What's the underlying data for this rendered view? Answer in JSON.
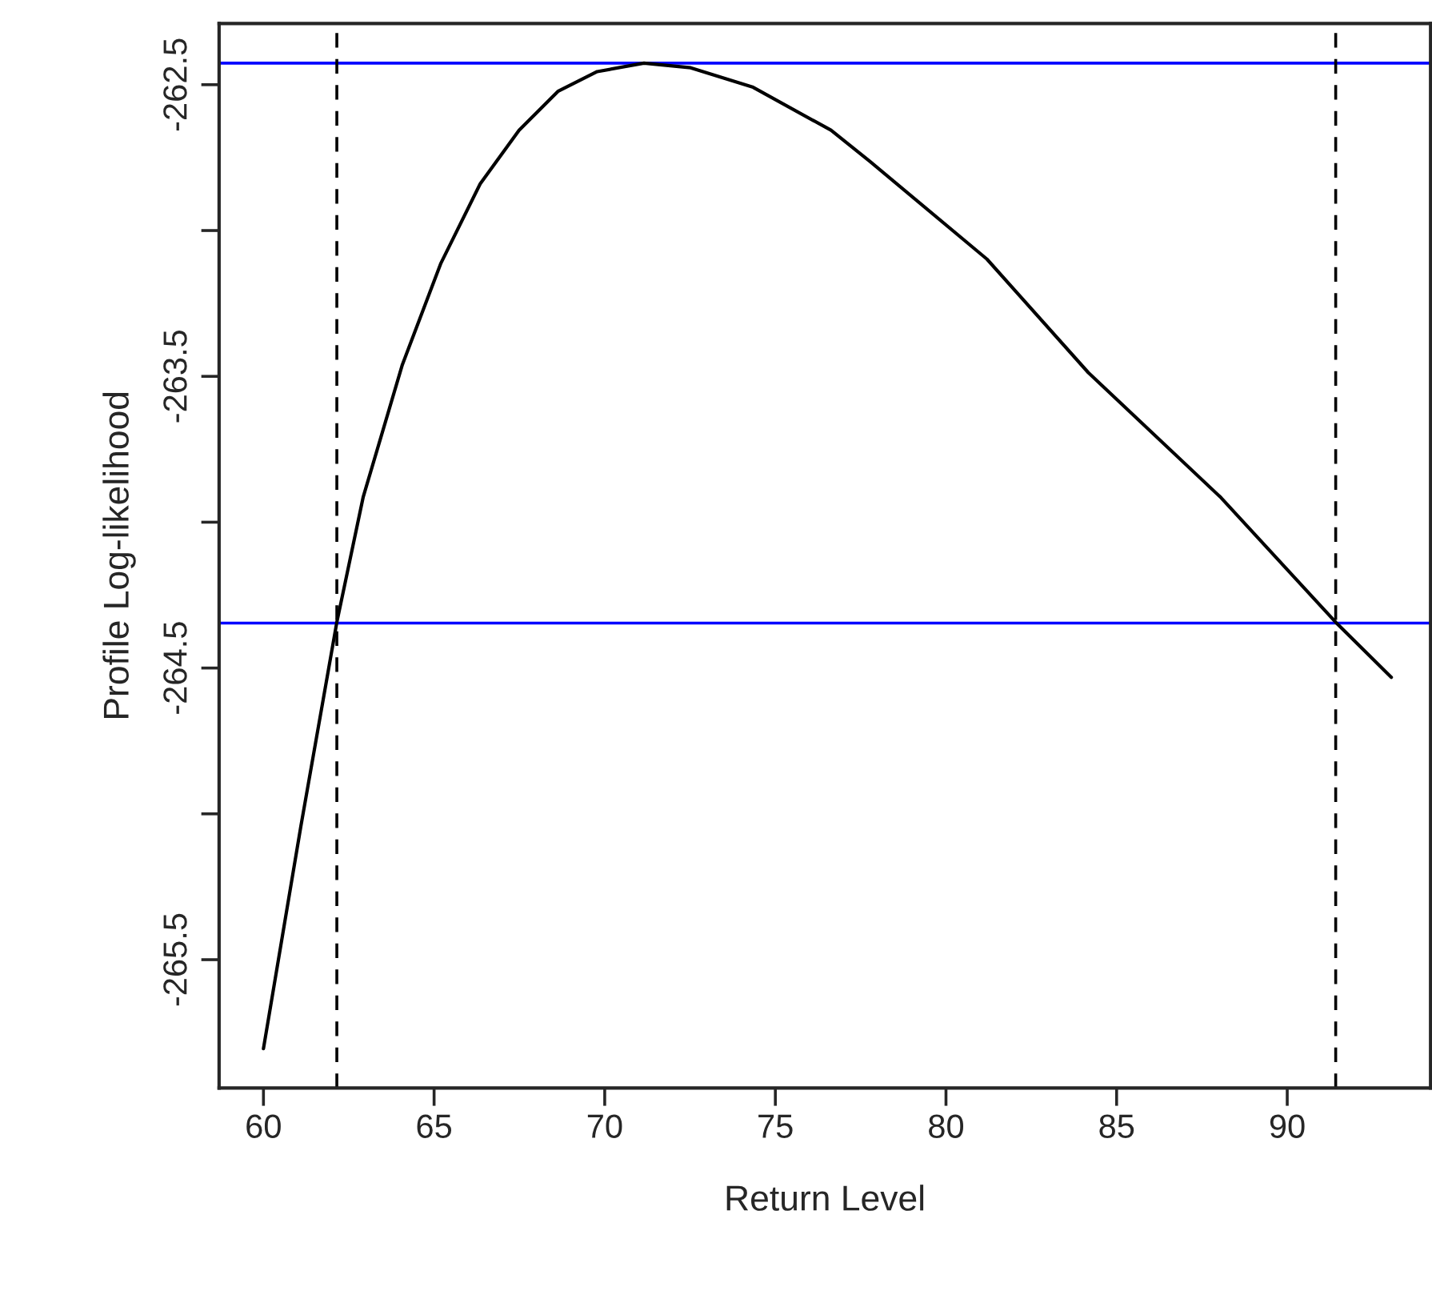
{
  "chart_data": {
    "type": "line",
    "xlabel": "Return Level",
    "ylabel": "Profile Log-likelihood",
    "series": [
      {
        "color": "#000000",
        "x": [
          60.0,
          61.1,
          62.15,
          62.92,
          64.07,
          65.2,
          66.35,
          67.49,
          68.64,
          69.78,
          71.15,
          72.52,
          74.35,
          76.63,
          77.77,
          81.2,
          84.17,
          88.06,
          91.42,
          93.05
        ],
        "values": [
          -265.805,
          -265.04,
          -264.343,
          -263.915,
          -263.46,
          -263.112,
          -262.84,
          -262.656,
          -262.522,
          -262.455,
          -262.426,
          -262.442,
          -262.509,
          -262.656,
          -262.763,
          -263.098,
          -263.487,
          -263.916,
          -264.343,
          -264.532
        ]
      }
    ],
    "xlim": [
      58.7,
      94.2
    ],
    "ylim": [
      -265.94,
      -262.29
    ],
    "xticks": [
      60,
      65,
      70,
      75,
      80,
      85,
      90
    ],
    "yticks": [
      -262.5,
      {
        "value": -263,
        "label": null
      },
      -263.5,
      {
        "value": -264,
        "label": null
      },
      -264.5,
      {
        "value": -265,
        "label": null
      },
      -265.5
    ],
    "ref_lines": [
      {
        "axis": "y",
        "value": -262.426,
        "color": "#0000ff",
        "line_style": "solid"
      },
      {
        "axis": "y",
        "value": -264.346,
        "color": "#0000ff",
        "line_style": "solid"
      },
      {
        "axis": "x",
        "value": 62.15,
        "color": "#000000",
        "line_style": "dashed"
      },
      {
        "axis": "x",
        "value": 91.42,
        "color": "#000000",
        "line_style": "dashed"
      }
    ],
    "grid": false,
    "legend": false,
    "marker": "none",
    "line_style": "solid"
  }
}
